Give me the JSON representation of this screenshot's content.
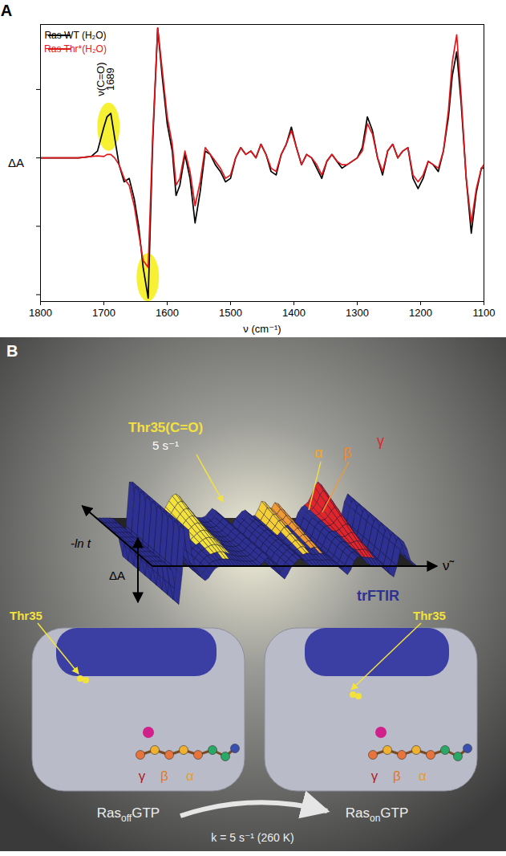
{
  "chart_data": {
    "type": "line",
    "panel_label": "A",
    "x_label": "ν (cm⁻¹)",
    "y_label": "ΔA",
    "x": [
      1800,
      1780,
      1760,
      1740,
      1720,
      1710,
      1700,
      1695,
      1689,
      1683,
      1676,
      1668,
      1660,
      1652,
      1645,
      1638,
      1630,
      1623,
      1615,
      1608,
      1600,
      1592,
      1586,
      1580,
      1572,
      1564,
      1556,
      1548,
      1540,
      1532,
      1524,
      1516,
      1508,
      1500,
      1492,
      1484,
      1476,
      1468,
      1460,
      1452,
      1444,
      1436,
      1428,
      1420,
      1412,
      1404,
      1396,
      1388,
      1380,
      1372,
      1364,
      1356,
      1348,
      1340,
      1332,
      1324,
      1316,
      1308,
      1300,
      1292,
      1284,
      1276,
      1268,
      1260,
      1252,
      1244,
      1236,
      1228,
      1220,
      1212,
      1204,
      1196,
      1188,
      1180,
      1172,
      1164,
      1156,
      1150,
      1143,
      1136,
      1128,
      1120,
      1112,
      1104,
      1100
    ],
    "series": [
      {
        "name": "Ras WT (H₂O)",
        "color": "#000000",
        "values": [
          0,
          0,
          0,
          0,
          0.02,
          0.1,
          0.45,
          0.6,
          0.65,
          0.3,
          -0.1,
          -0.35,
          -0.3,
          -0.6,
          -1.0,
          -1.6,
          -2.05,
          0.2,
          1.9,
          1.2,
          0.5,
          0.1,
          -0.55,
          -0.4,
          0.05,
          -0.3,
          -0.95,
          -0.5,
          0.1,
          0.05,
          -0.1,
          -0.2,
          -0.35,
          -0.3,
          0.0,
          0.15,
          0.05,
          0.1,
          0.0,
          0.2,
          0.05,
          -0.2,
          -0.25,
          0.05,
          0.2,
          0.45,
          0.15,
          -0.1,
          0.05,
          0.0,
          -0.15,
          -0.3,
          -0.05,
          0.05,
          -0.05,
          -0.15,
          -0.1,
          -0.05,
          0.0,
          0.15,
          0.6,
          0.4,
          0.0,
          -0.25,
          0.1,
          0.2,
          0.0,
          0.1,
          0.15,
          -0.3,
          -0.45,
          -0.3,
          -0.05,
          -0.1,
          -0.2,
          0.1,
          0.6,
          1.2,
          1.55,
          0.8,
          -0.3,
          -1.1,
          -0.5,
          -0.15,
          -0.15
        ]
      },
      {
        "name": "Ras Thr*(H₂O)",
        "color": "#e3161b",
        "values": [
          0,
          0,
          0,
          0,
          0.02,
          0.03,
          0.02,
          0.05,
          0.05,
          0.0,
          -0.1,
          -0.3,
          -0.4,
          -0.7,
          -1.1,
          -1.5,
          -1.6,
          0.3,
          1.9,
          1.3,
          0.6,
          0.2,
          -0.4,
          -0.3,
          0.1,
          -0.2,
          -0.7,
          -0.35,
          0.15,
          0.05,
          -0.05,
          -0.15,
          -0.3,
          -0.25,
          0.0,
          0.15,
          0.05,
          0.1,
          0.0,
          0.2,
          0.05,
          -0.15,
          -0.2,
          0.05,
          0.2,
          0.4,
          0.15,
          -0.1,
          0.05,
          0.0,
          -0.1,
          -0.25,
          -0.05,
          0.05,
          -0.05,
          -0.1,
          -0.1,
          -0.05,
          0.0,
          0.1,
          0.5,
          0.35,
          0.0,
          -0.2,
          0.1,
          0.2,
          0.0,
          0.1,
          0.15,
          -0.25,
          -0.35,
          -0.25,
          -0.05,
          -0.1,
          -0.15,
          0.1,
          0.7,
          1.4,
          1.8,
          0.9,
          -0.3,
          -0.95,
          -0.45,
          -0.15,
          -0.1
        ]
      }
    ],
    "xlim": [
      1800,
      1100
    ],
    "xticks": [
      1800,
      1700,
      1600,
      1500,
      1400,
      1300,
      1200,
      1100
    ],
    "ylim": [
      -2.1,
      1.95
    ],
    "yticks": [
      -2,
      -1,
      0,
      1
    ],
    "tick_labels": "x",
    "legend": "top-left",
    "annotations": [
      {
        "text": "ν(C=O)",
        "x": 1705,
        "y": 1.15
      },
      {
        "text": "1689",
        "x": 1690,
        "y": 1.15
      }
    ],
    "highlights": [
      {
        "x": 1692,
        "y": 0.45
      },
      {
        "x": 1630,
        "y": -1.75
      }
    ]
  },
  "diagram": {
    "panel_label": "B",
    "axes": {
      "time": "-ln t",
      "signal": "ΔA",
      "wavenumber": "ν̃"
    },
    "method": "trFTIR",
    "band_labels": {
      "thr35": "Thr35(C=O)",
      "rate": "5 s⁻¹",
      "alpha": "α",
      "beta": "β",
      "gamma": "γ"
    },
    "structures": [
      {
        "residue": "Thr35",
        "phosphates": [
          "γ",
          "β",
          "α"
        ],
        "state": {
          "main": "Ras",
          "sub": "off",
          "tail": "GTP"
        }
      },
      {
        "residue": "Thr35",
        "phosphates": [
          "γ",
          "β",
          "α"
        ],
        "state": {
          "main": "Ras",
          "sub": "on",
          "tail": "GTP"
        }
      }
    ],
    "transition": "k = 5 s⁻¹ (260 K)"
  }
}
